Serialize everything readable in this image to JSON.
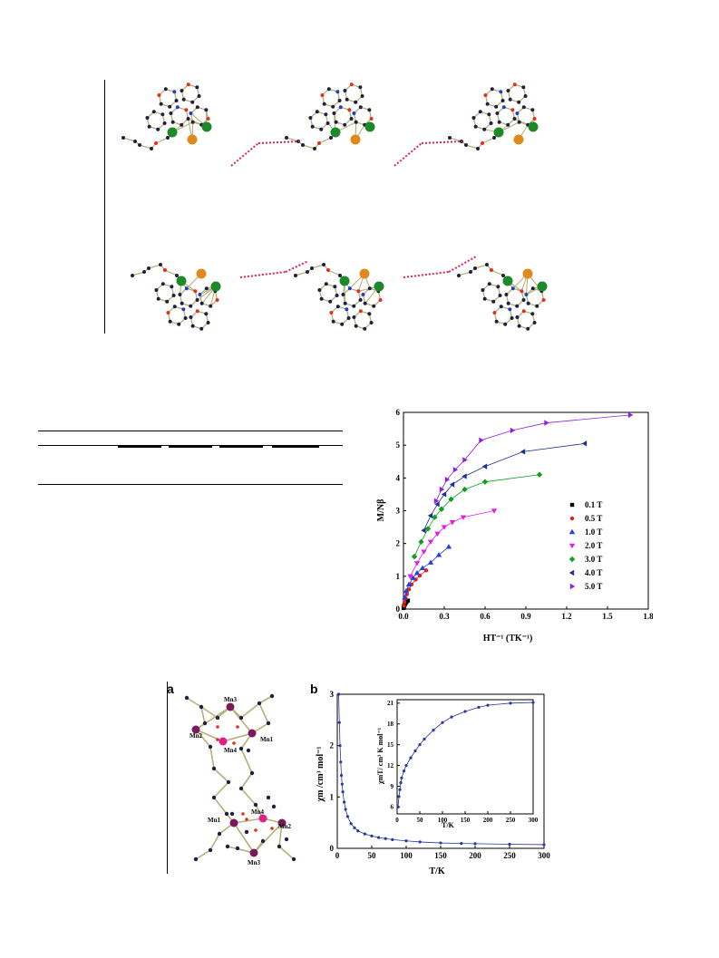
{
  "figure_crystal": {
    "atom_colors": {
      "bond": "#b5b079",
      "carbon": "#1e2040",
      "oxygen": "#e03020",
      "nitrogen": "#2040c0",
      "metal_green": "#1d8a2a",
      "metal_orange": "#e08a1c",
      "hbond": "#e0205a"
    }
  },
  "chart_data": [
    {
      "type": "line",
      "xlabel": "HT⁻¹ (TK⁻¹)",
      "ylabel": "M/Nβ",
      "xlim": [
        0.0,
        1.8
      ],
      "ylim": [
        0,
        6
      ],
      "xticks": [
        "0.0",
        "0.3",
        "0.6",
        "0.9",
        "1.2",
        "1.5",
        "1.8"
      ],
      "yticks": [
        "0",
        "1",
        "2",
        "3",
        "4",
        "5",
        "6"
      ],
      "legend_position": "right",
      "series": [
        {
          "name": "0.1 T",
          "color": "#000000",
          "marker": "square",
          "x": [
            0.0007,
            0.0015,
            0.003,
            0.005,
            0.008,
            0.012,
            0.017,
            0.022,
            0.033
          ],
          "y": [
            0.03,
            0.06,
            0.08,
            0.1,
            0.13,
            0.16,
            0.19,
            0.22,
            0.26
          ]
        },
        {
          "name": "0.5 T",
          "color": "#e02020",
          "marker": "circle",
          "x": [
            0.003,
            0.008,
            0.015,
            0.025,
            0.04,
            0.06,
            0.09,
            0.12,
            0.167
          ],
          "y": [
            0.1,
            0.22,
            0.33,
            0.45,
            0.6,
            0.75,
            0.9,
            1.02,
            1.18
          ]
        },
        {
          "name": "1.0 T",
          "color": "#2040e0",
          "marker": "triangle-up",
          "x": [
            0.01,
            0.02,
            0.04,
            0.07,
            0.1,
            0.14,
            0.2,
            0.26,
            0.333
          ],
          "y": [
            0.35,
            0.55,
            0.75,
            0.95,
            1.1,
            1.25,
            1.42,
            1.65,
            1.9
          ]
        },
        {
          "name": "2.0 T",
          "color": "#e020e0",
          "marker": "triangle-down",
          "x": [
            0.05,
            0.1,
            0.15,
            0.2,
            0.25,
            0.3,
            0.36,
            0.44,
            0.667
          ],
          "y": [
            1.0,
            1.4,
            1.75,
            2.05,
            2.3,
            2.5,
            2.65,
            2.8,
            3.0
          ]
        },
        {
          "name": "3.0 T",
          "color": "#10a020",
          "marker": "diamond",
          "x": [
            0.08,
            0.13,
            0.18,
            0.23,
            0.28,
            0.35,
            0.45,
            0.6,
            1.0
          ],
          "y": [
            1.6,
            2.05,
            2.45,
            2.8,
            3.05,
            3.35,
            3.65,
            3.88,
            4.1
          ]
        },
        {
          "name": "4.0 T",
          "color": "#203090",
          "marker": "triangle-left",
          "x": [
            0.15,
            0.2,
            0.25,
            0.3,
            0.36,
            0.45,
            0.6,
            0.88,
            1.333
          ],
          "y": [
            2.4,
            2.85,
            3.2,
            3.5,
            3.8,
            4.05,
            4.35,
            4.8,
            5.05
          ]
        },
        {
          "name": "5.0 T",
          "color": "#9020e0",
          "marker": "triangle-right",
          "x": [
            0.24,
            0.28,
            0.32,
            0.38,
            0.45,
            0.57,
            0.8,
            1.05,
            1.667
          ],
          "y": [
            3.3,
            3.65,
            3.95,
            4.25,
            4.55,
            5.15,
            5.45,
            5.68,
            5.92
          ]
        }
      ]
    },
    {
      "type": "line",
      "xlabel": "T/K",
      "ylabel": "χm /cm³ mol⁻¹",
      "xlim": [
        0,
        300
      ],
      "ylim": [
        0,
        3
      ],
      "xticks": [
        "0",
        "50",
        "100",
        "150",
        "200",
        "250",
        "300"
      ],
      "yticks": [
        "0",
        "1",
        "2",
        "3"
      ],
      "series": [
        {
          "name": "",
          "color": "#2838a0",
          "x": [
            2,
            3,
            4,
            5,
            6,
            7,
            8,
            10,
            12,
            15,
            20,
            25,
            30,
            40,
            50,
            60,
            70,
            80,
            100,
            120,
            150,
            180,
            200,
            250,
            300
          ],
          "y": [
            3.0,
            2.45,
            2.0,
            1.68,
            1.42,
            1.25,
            1.1,
            0.9,
            0.76,
            0.62,
            0.48,
            0.4,
            0.34,
            0.28,
            0.24,
            0.21,
            0.19,
            0.17,
            0.145,
            0.125,
            0.105,
            0.095,
            0.09,
            0.08,
            0.072
          ]
        }
      ]
    },
    {
      "type": "line",
      "inset": true,
      "xlabel": "T/K",
      "ylabel": "χmT/ cm³ K mol⁻¹",
      "xlim": [
        0,
        300
      ],
      "ylim": [
        5,
        21.5
      ],
      "xticks": [
        "0",
        "50",
        "100",
        "150",
        "200",
        "250",
        "300"
      ],
      "yticks": [
        "6",
        "9",
        "12",
        "15",
        "18",
        "21"
      ],
      "series": [
        {
          "name": "",
          "color": "#2838a0",
          "x": [
            2,
            4,
            6,
            8,
            10,
            15,
            20,
            30,
            40,
            50,
            60,
            80,
            100,
            120,
            150,
            180,
            200,
            250,
            300
          ],
          "y": [
            6.0,
            7.5,
            8.5,
            9.5,
            10.2,
            11.2,
            12.0,
            13.1,
            14.1,
            15.0,
            15.8,
            17.1,
            18.2,
            19.0,
            19.8,
            20.4,
            20.7,
            21.0,
            21.1
          ]
        }
      ]
    }
  ],
  "figure_c": {
    "panel_a_label": "a",
    "panel_b_label": "b",
    "mn_labels": [
      "Mn3",
      "Mn2",
      "Mn1",
      "Mn4",
      "Mn4",
      "Mn1",
      "Mn2",
      "Mn3"
    ]
  }
}
